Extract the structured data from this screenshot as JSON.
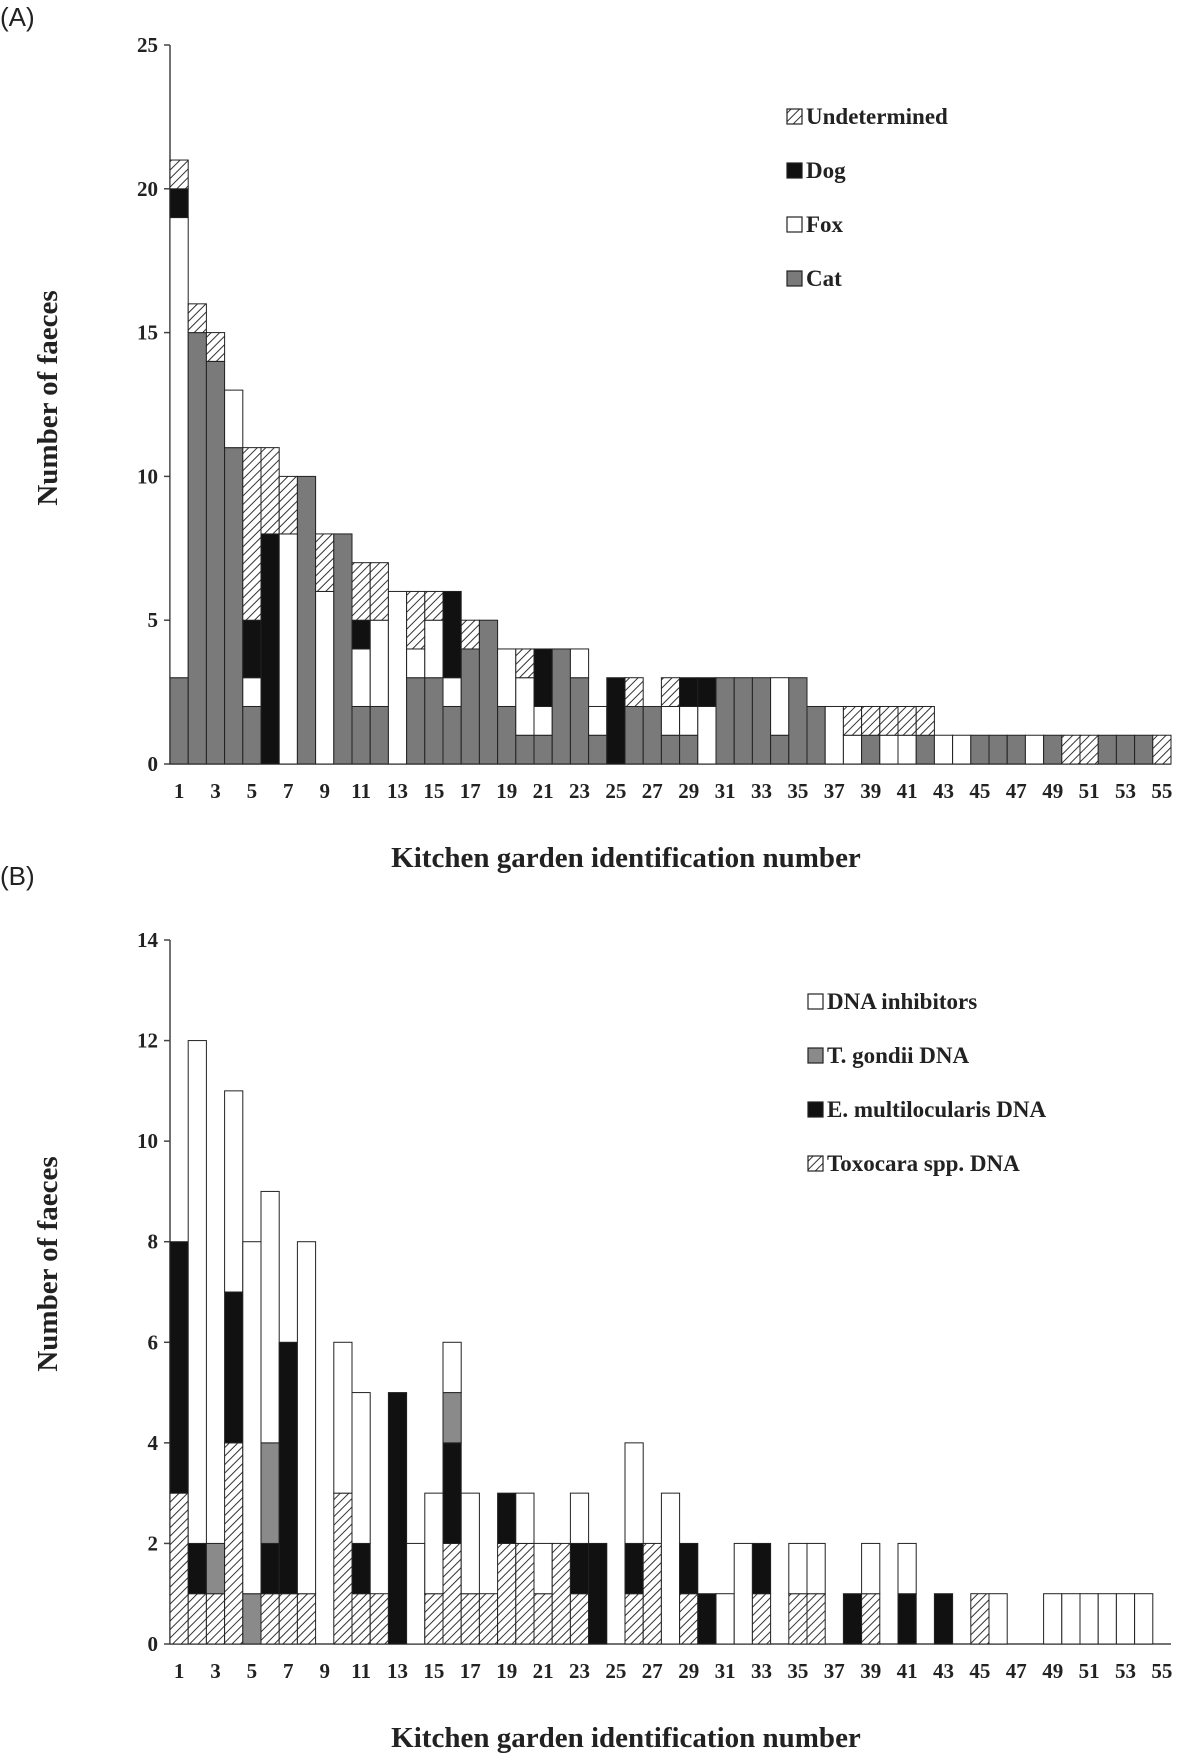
{
  "chart_data": [
    {
      "panel": "(A)",
      "type": "bar",
      "stacked": true,
      "xlabel": "Kitchen garden identification number",
      "ylabel": "Number of faeces",
      "ylim": [
        0,
        25
      ],
      "yticks": [
        0,
        5,
        10,
        15,
        20,
        25
      ],
      "categories": [
        1,
        2,
        3,
        4,
        5,
        6,
        7,
        8,
        9,
        10,
        11,
        12,
        13,
        14,
        15,
        16,
        17,
        18,
        19,
        20,
        21,
        22,
        23,
        24,
        25,
        26,
        27,
        28,
        29,
        30,
        31,
        32,
        33,
        34,
        35,
        36,
        37,
        38,
        39,
        40,
        41,
        42,
        43,
        44,
        45,
        46,
        47,
        48,
        49,
        50,
        51,
        52,
        53,
        54,
        55
      ],
      "xtick_labels": [
        "1",
        "3",
        "5",
        "7",
        "9",
        "11",
        "13",
        "15",
        "17",
        "19",
        "21",
        "23",
        "25",
        "27",
        "29",
        "31",
        "33",
        "35",
        "37",
        "39",
        "41",
        "43",
        "45",
        "47",
        "49",
        "51",
        "53",
        "55"
      ],
      "legend_position": "top-right",
      "series": [
        {
          "name": "Cat",
          "fill": "cat",
          "values": [
            3,
            15,
            14,
            11,
            2,
            0,
            0,
            10,
            0,
            8,
            2,
            2,
            0,
            3,
            3,
            2,
            4,
            5,
            2,
            1,
            1,
            4,
            3,
            1,
            0,
            2,
            2,
            1,
            1,
            0,
            3,
            3,
            3,
            1,
            3,
            2,
            0,
            0,
            1,
            0,
            0,
            1,
            0,
            0,
            1,
            1,
            1,
            0,
            1,
            0,
            0,
            1,
            1,
            1,
            0
          ]
        },
        {
          "name": "Fox",
          "fill": "fox",
          "values": [
            16,
            0,
            0,
            2,
            1,
            0,
            8,
            0,
            6,
            0,
            2,
            3,
            6,
            1,
            2,
            1,
            0,
            0,
            2,
            2,
            1,
            0,
            1,
            1,
            0,
            0,
            0,
            1,
            1,
            2,
            0,
            0,
            0,
            2,
            0,
            0,
            2,
            1,
            0,
            1,
            1,
            0,
            1,
            1,
            0,
            0,
            0,
            1,
            0,
            0,
            0,
            0,
            0,
            0,
            0
          ]
        },
        {
          "name": "Dog",
          "fill": "dog",
          "values": [
            1,
            0,
            0,
            0,
            2,
            8,
            0,
            0,
            0,
            0,
            1,
            0,
            0,
            0,
            0,
            3,
            0,
            0,
            0,
            0,
            2,
            0,
            0,
            0,
            3,
            0,
            0,
            0,
            1,
            1,
            0,
            0,
            0,
            0,
            0,
            0,
            0,
            0,
            0,
            0,
            0,
            0,
            0,
            0,
            0,
            0,
            0,
            0,
            0,
            0,
            0,
            0,
            0,
            0,
            0
          ]
        },
        {
          "name": "Undetermined",
          "fill": "hatch",
          "values": [
            1,
            1,
            1,
            0,
            6,
            3,
            2,
            0,
            2,
            0,
            2,
            2,
            0,
            2,
            1,
            0,
            1,
            0,
            0,
            1,
            0,
            0,
            0,
            0,
            0,
            1,
            0,
            1,
            0,
            0,
            0,
            0,
            0,
            0,
            0,
            0,
            0,
            1,
            1,
            1,
            1,
            1,
            0,
            0,
            0,
            0,
            0,
            0,
            0,
            1,
            1,
            0,
            0,
            0,
            1
          ]
        }
      ]
    },
    {
      "panel": "(B)",
      "type": "bar",
      "stacked": true,
      "xlabel": "Kitchen garden identification number",
      "ylabel": "Number of faeces",
      "ylim": [
        0,
        14
      ],
      "yticks": [
        0,
        2,
        4,
        6,
        8,
        10,
        12,
        14
      ],
      "categories": [
        1,
        2,
        3,
        4,
        5,
        6,
        7,
        8,
        9,
        10,
        11,
        12,
        13,
        14,
        15,
        16,
        17,
        18,
        19,
        20,
        21,
        22,
        23,
        24,
        25,
        26,
        27,
        28,
        29,
        30,
        31,
        32,
        33,
        34,
        35,
        36,
        37,
        38,
        39,
        40,
        41,
        42,
        43,
        44,
        45,
        46,
        47,
        48,
        49,
        50,
        51,
        52,
        53,
        54,
        55
      ],
      "xtick_labels": [
        "1",
        "3",
        "5",
        "7",
        "9",
        "11",
        "13",
        "15",
        "17",
        "19",
        "21",
        "23",
        "25",
        "27",
        "29",
        "31",
        "33",
        "35",
        "37",
        "39",
        "41",
        "43",
        "45",
        "47",
        "49",
        "51",
        "53",
        "55"
      ],
      "legend_position": "top-right",
      "series": [
        {
          "name": "Toxocara spp. DNA",
          "fill": "hatch",
          "values": [
            3,
            1,
            1,
            4,
            0,
            1,
            1,
            1,
            0,
            3,
            1,
            1,
            0,
            0,
            1,
            2,
            1,
            1,
            2,
            2,
            1,
            2,
            1,
            0,
            0,
            1,
            2,
            0,
            1,
            0,
            0,
            0,
            1,
            0,
            1,
            1,
            0,
            0,
            1,
            0,
            0,
            0,
            0,
            0,
            1,
            0,
            0,
            0,
            0,
            0,
            0,
            0,
            0,
            0,
            0
          ]
        },
        {
          "name": "E. multilocularis DNA",
          "fill": "black",
          "values": [
            5,
            1,
            0,
            3,
            0,
            1,
            5,
            0,
            0,
            0,
            1,
            0,
            5,
            0,
            0,
            2,
            0,
            0,
            1,
            0,
            0,
            0,
            1,
            2,
            0,
            1,
            0,
            0,
            1,
            1,
            0,
            0,
            1,
            0,
            0,
            0,
            0,
            1,
            0,
            0,
            1,
            0,
            1,
            0,
            0,
            0,
            0,
            0,
            0,
            0,
            0,
            0,
            0,
            0,
            0
          ]
        },
        {
          "name": "T. gondii DNA",
          "fill": "grey",
          "values": [
            0,
            0,
            1,
            0,
            1,
            2,
            0,
            0,
            0,
            0,
            0,
            0,
            0,
            0,
            0,
            1,
            0,
            0,
            0,
            0,
            0,
            0,
            0,
            0,
            0,
            0,
            0,
            0,
            0,
            0,
            0,
            0,
            0,
            0,
            0,
            0,
            0,
            0,
            0,
            0,
            0,
            0,
            0,
            0,
            0,
            0,
            0,
            0,
            0,
            0,
            0,
            0,
            0,
            0,
            0
          ]
        },
        {
          "name": "DNA inhibitors",
          "fill": "white",
          "values": [
            0,
            10,
            0,
            4,
            7,
            5,
            0,
            7,
            0,
            3,
            3,
            0,
            0,
            2,
            2,
            1,
            2,
            0,
            0,
            1,
            1,
            0,
            1,
            0,
            0,
            2,
            0,
            3,
            0,
            0,
            1,
            2,
            0,
            0,
            1,
            1,
            0,
            0,
            1,
            0,
            1,
            0,
            0,
            0,
            0,
            1,
            0,
            0,
            1,
            1,
            1,
            1,
            1,
            1,
            0
          ]
        }
      ]
    }
  ]
}
